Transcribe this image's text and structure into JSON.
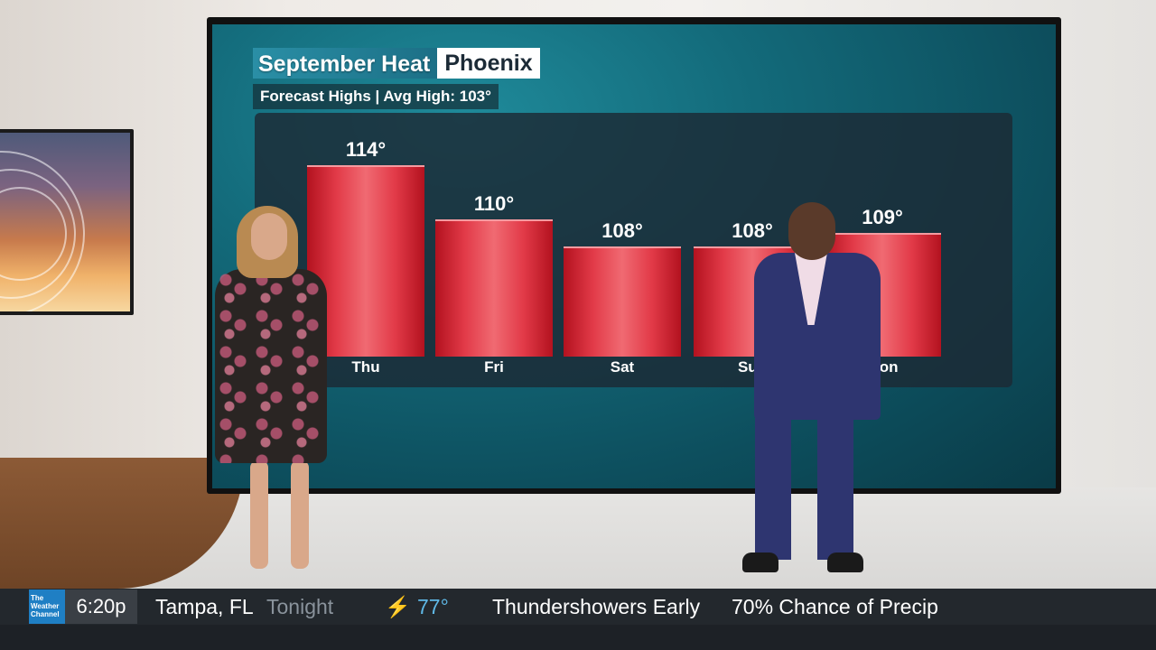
{
  "wall_graphic": {
    "title": "September Heat",
    "city": "Phoenix",
    "subtitle": "Forecast Highs | Avg High:  103°"
  },
  "forecast": [
    {
      "day": "Thu",
      "temp_label": "114°",
      "temp": 114
    },
    {
      "day": "Fri",
      "temp_label": "110°",
      "temp": 110
    },
    {
      "day": "Sat",
      "temp_label": "108°",
      "temp": 108
    },
    {
      "day": "Sun",
      "temp_label": "108°",
      "temp": 108
    },
    {
      "day": "Mon",
      "temp_label": "109°",
      "temp": 109
    }
  ],
  "ticker": {
    "logo": "The Weather Channel",
    "time": "6:20p",
    "location": "Tampa, FL",
    "period": "Tonight",
    "icon": "lightning-bolt-icon",
    "temp": "77°",
    "condition": "Thundershowers Early",
    "precip": "70% Chance of Precip"
  }
}
